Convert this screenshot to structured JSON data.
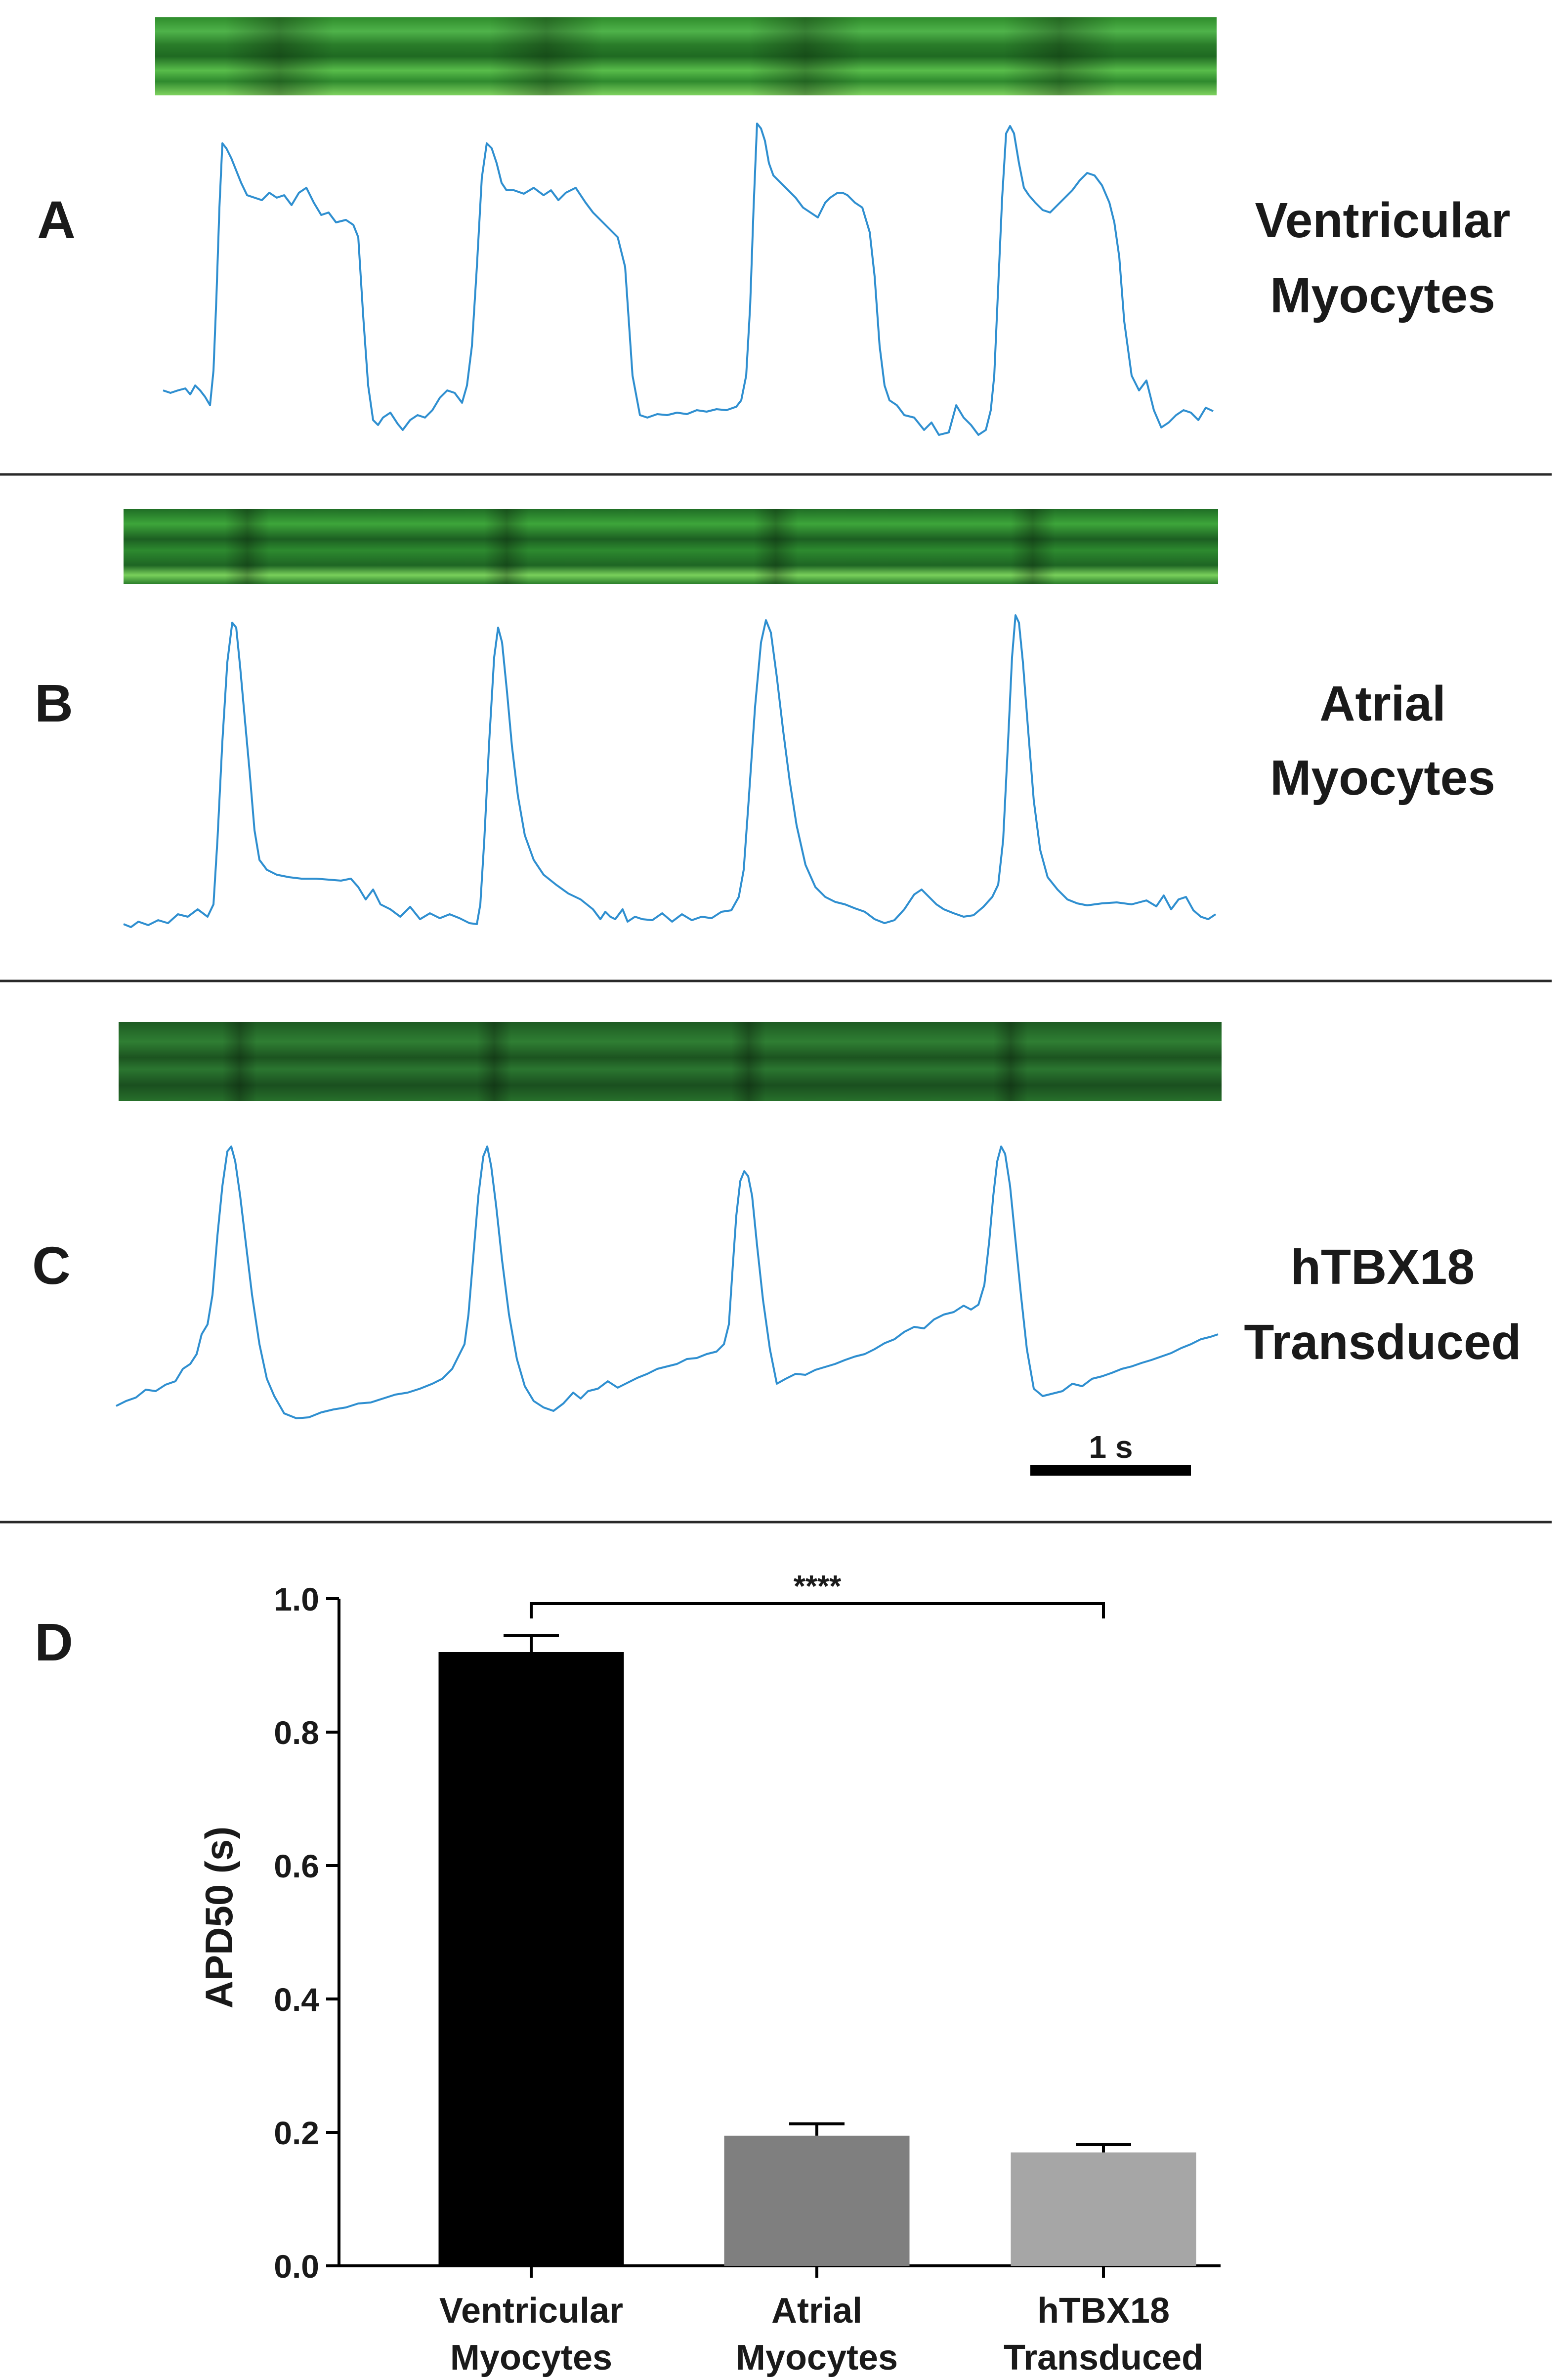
{
  "panels": [
    {
      "letter": "A",
      "name_line1": "Ventricular",
      "name_line2": "Myocytes",
      "strip_color": "#3a9a3a",
      "trace_color": "#2f8fd0"
    },
    {
      "letter": "B",
      "name_line1": "Atrial",
      "name_line2": "Myocytes",
      "strip_color": "#2e8a34",
      "trace_color": "#2f8fd0"
    },
    {
      "letter": "C",
      "name_line1": "hTBX18",
      "name_line2": "Transduced",
      "strip_color": "#1f6a28",
      "trace_color": "#2f8fd0"
    }
  ],
  "scale_bar_label": "1 s",
  "chart_data": {
    "type": "bar",
    "panel_letter": "D",
    "categories": [
      [
        "Ventricular",
        "Myocytes"
      ],
      [
        "Atrial",
        "Myocytes"
      ],
      [
        "hTBX18",
        "Transduced"
      ]
    ],
    "values": [
      0.92,
      0.195,
      0.17
    ],
    "errors": [
      0.025,
      0.018,
      0.012
    ],
    "bar_colors": [
      "#000000",
      "#7f7f7f",
      "#a6a6a6"
    ],
    "ylabel": "APD50 (s)",
    "ylim": [
      0,
      1.0
    ],
    "yticks": [
      0.0,
      0.2,
      0.4,
      0.6,
      0.8,
      1.0
    ],
    "ytick_labels": [
      "0.0",
      "0.2",
      "0.4",
      "0.6",
      "0.8",
      "1.0"
    ],
    "significance": {
      "from": 0,
      "to": 2,
      "label": "****"
    }
  }
}
